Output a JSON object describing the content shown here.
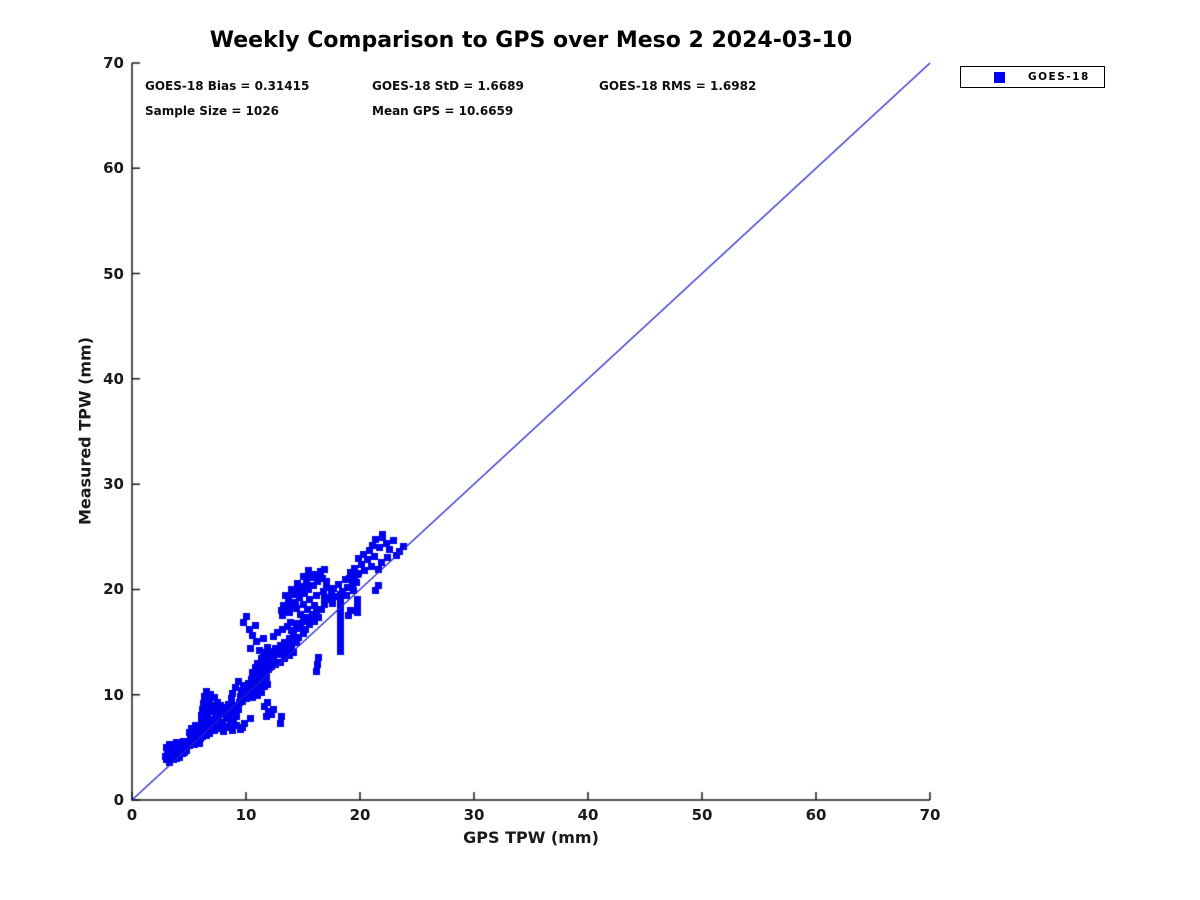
{
  "colors": {
    "marker": "#0000ee",
    "line": "#2222cc",
    "axis": "#1a1a1a",
    "text": "#000000"
  },
  "stats": {
    "bias": "GOES-18 Bias = 0.31415",
    "std": "GOES-18 StD = 1.6689",
    "rms": "GOES-18 RMS = 1.6982",
    "sample": "Sample Size = 1026",
    "mean_gps": "Mean GPS = 10.6659"
  },
  "legend": {
    "label": "GOES-18",
    "marker_color": "#0000ee"
  },
  "chart_data": {
    "type": "scatter",
    "title": "Weekly Comparison to GPS over Meso 2 2024-03-10",
    "xlabel": "GPS TPW (mm)",
    "ylabel": "Measured TPW (mm)",
    "xlim": [
      0,
      70
    ],
    "ylim": [
      0,
      70
    ],
    "xticks": [
      0,
      10,
      20,
      30,
      40,
      50,
      60,
      70
    ],
    "yticks": [
      0,
      10,
      20,
      30,
      40,
      50,
      60,
      70
    ],
    "grid": false,
    "legend_position": "top-right-outside",
    "annotations": [
      "GOES-18 Bias = 0.31415",
      "GOES-18 StD = 1.6689",
      "GOES-18 RMS = 1.6982",
      "Sample Size = 1026",
      "Mean GPS = 10.6659"
    ],
    "reported_sample_size": 1026,
    "series": [
      {
        "name": "GOES-18",
        "type": "scatter",
        "marker": "square",
        "marker_size": 7,
        "color": "#0000ee",
        "points": [
          [
            2.9,
            4.1
          ],
          [
            3.0,
            3.8
          ],
          [
            3.1,
            4.4
          ],
          [
            3.2,
            4.0
          ],
          [
            3.3,
            3.6
          ],
          [
            3.4,
            4.5
          ],
          [
            3.5,
            4.1
          ],
          [
            3.6,
            3.8
          ],
          [
            3.7,
            4.6
          ],
          [
            3.8,
            4.2
          ],
          [
            3.9,
            3.9
          ],
          [
            4.0,
            4.7
          ],
          [
            4.1,
            4.3
          ],
          [
            4.2,
            4.0
          ],
          [
            4.3,
            4.8
          ],
          [
            4.4,
            4.4
          ],
          [
            4.5,
            5.0
          ],
          [
            4.6,
            4.5
          ],
          [
            4.7,
            5.2
          ],
          [
            4.8,
            4.7
          ],
          [
            3.0,
            5.0
          ],
          [
            3.3,
            5.3
          ],
          [
            3.6,
            5.1
          ],
          [
            3.9,
            5.5
          ],
          [
            4.2,
            5.2
          ],
          [
            4.5,
            5.6
          ],
          [
            4.8,
            5.3
          ],
          [
            4.9,
            5.6
          ],
          [
            5.0,
            5.2
          ],
          [
            5.1,
            6.0
          ],
          [
            5.2,
            5.5
          ],
          [
            5.3,
            6.3
          ],
          [
            5.4,
            5.8
          ],
          [
            5.5,
            5.3
          ],
          [
            5.5,
            6.5
          ],
          [
            5.6,
            6.0
          ],
          [
            5.7,
            5.6
          ],
          [
            5.8,
            6.7
          ],
          [
            5.9,
            6.2
          ],
          [
            6.0,
            5.8
          ],
          [
            6.0,
            6.9
          ],
          [
            6.1,
            6.4
          ],
          [
            6.2,
            6.0
          ],
          [
            6.3,
            7.0
          ],
          [
            6.4,
            6.5
          ],
          [
            6.5,
            6.1
          ],
          [
            6.6,
            7.2
          ],
          [
            6.7,
            6.7
          ],
          [
            6.8,
            6.3
          ],
          [
            6.9,
            7.4
          ],
          [
            7.0,
            6.9
          ],
          [
            5.2,
            6.8
          ],
          [
            5.6,
            7.1
          ],
          [
            6.1,
            7.5
          ],
          [
            6.6,
            7.7
          ],
          [
            5.0,
            6.4
          ],
          [
            5.9,
            5.4
          ],
          [
            6.1,
            8.0
          ],
          [
            6.2,
            8.6
          ],
          [
            6.3,
            9.2
          ],
          [
            6.4,
            9.8
          ],
          [
            6.5,
            10.3
          ],
          [
            6.6,
            8.2
          ],
          [
            6.7,
            8.9
          ],
          [
            6.8,
            9.5
          ],
          [
            6.9,
            10.0
          ],
          [
            7.0,
            7.6
          ],
          [
            7.0,
            8.4
          ],
          [
            7.1,
            9.0
          ],
          [
            7.2,
            9.7
          ],
          [
            7.3,
            7.2
          ],
          [
            7.3,
            8.1
          ],
          [
            7.4,
            8.7
          ],
          [
            7.5,
            9.3
          ],
          [
            7.6,
            7.8
          ],
          [
            7.7,
            8.4
          ],
          [
            7.8,
            9.0
          ],
          [
            7.9,
            7.4
          ],
          [
            8.0,
            8.1
          ],
          [
            8.1,
            8.8
          ],
          [
            8.2,
            7.0
          ],
          [
            8.3,
            7.7
          ],
          [
            8.4,
            8.4
          ],
          [
            8.5,
            9.1
          ],
          [
            8.6,
            7.3
          ],
          [
            8.7,
            8.0
          ],
          [
            8.8,
            8.7
          ],
          [
            8.9,
            7.6
          ],
          [
            9.0,
            8.3
          ],
          [
            9.1,
            9.0
          ],
          [
            9.2,
            7.9
          ],
          [
            9.3,
            8.6
          ],
          [
            9.4,
            9.3
          ],
          [
            7.2,
            6.6
          ],
          [
            7.6,
            6.8
          ],
          [
            8.0,
            6.5
          ],
          [
            8.4,
            6.9
          ],
          [
            8.8,
            6.6
          ],
          [
            9.2,
            7.1
          ],
          [
            9.5,
            6.7
          ],
          [
            9.7,
            6.9
          ],
          [
            9.9,
            7.3
          ],
          [
            9.5,
            9.8
          ],
          [
            9.6,
            10.4
          ],
          [
            9.7,
            9.4
          ],
          [
            9.8,
            10.9
          ],
          [
            9.9,
            10.1
          ],
          [
            10.0,
            9.6
          ],
          [
            10.1,
            10.6
          ],
          [
            10.2,
            11.1
          ],
          [
            10.3,
            9.9
          ],
          [
            10.4,
            10.3
          ],
          [
            10.5,
            11.4
          ],
          [
            10.6,
            10.8
          ],
          [
            10.7,
            10.0
          ],
          [
            10.8,
            11.6
          ],
          [
            10.9,
            11.0
          ],
          [
            11.0,
            10.4
          ],
          [
            11.1,
            11.8
          ],
          [
            11.2,
            11.2
          ],
          [
            11.3,
            10.6
          ],
          [
            11.4,
            12.0
          ],
          [
            11.5,
            11.4
          ],
          [
            11.6,
            10.8
          ],
          [
            11.7,
            12.2
          ],
          [
            11.8,
            11.6
          ],
          [
            11.9,
            11.0
          ],
          [
            12.0,
            12.4
          ],
          [
            10.2,
            10.2
          ],
          [
            10.6,
            9.7
          ],
          [
            11.0,
            9.9
          ],
          [
            11.4,
            10.2
          ],
          [
            10.4,
            7.7
          ],
          [
            11.8,
            7.9
          ],
          [
            12.0,
            8.4
          ],
          [
            12.2,
            8.1
          ],
          [
            11.6,
            8.9
          ],
          [
            11.9,
            9.3
          ],
          [
            12.4,
            8.6
          ],
          [
            13.0,
            7.3
          ],
          [
            13.1,
            7.9
          ],
          [
            8.8,
            10.1
          ],
          [
            9.1,
            10.7
          ],
          [
            9.3,
            11.3
          ],
          [
            8.7,
            9.6
          ],
          [
            10.4,
            14.4
          ],
          [
            10.9,
            15.1
          ],
          [
            11.2,
            14.2
          ],
          [
            10.6,
            15.6
          ],
          [
            11.5,
            15.3
          ],
          [
            10.6,
            12.1
          ],
          [
            10.8,
            12.6
          ],
          [
            11.0,
            13.0
          ],
          [
            11.2,
            12.3
          ],
          [
            11.4,
            13.4
          ],
          [
            11.6,
            12.8
          ],
          [
            11.8,
            13.8
          ],
          [
            12.0,
            12.5
          ],
          [
            12.0,
            13.2
          ],
          [
            12.2,
            14.1
          ],
          [
            12.4,
            13.5
          ],
          [
            12.6,
            12.9
          ],
          [
            12.6,
            14.4
          ],
          [
            12.8,
            13.8
          ],
          [
            13.0,
            13.1
          ],
          [
            13.0,
            14.7
          ],
          [
            13.2,
            14.0
          ],
          [
            13.4,
            13.4
          ],
          [
            13.4,
            15.0
          ],
          [
            13.6,
            14.4
          ],
          [
            13.8,
            13.7
          ],
          [
            13.8,
            15.3
          ],
          [
            14.0,
            14.7
          ],
          [
            14.2,
            14.0
          ],
          [
            14.2,
            15.6
          ],
          [
            14.4,
            15.0
          ],
          [
            12.2,
            12.7
          ],
          [
            12.8,
            15.9
          ],
          [
            13.2,
            16.2
          ],
          [
            13.6,
            16.5
          ],
          [
            14.0,
            16.1
          ],
          [
            14.4,
            16.8
          ],
          [
            11.9,
            14.5
          ],
          [
            11.5,
            14.0
          ],
          [
            11.1,
            12.7
          ],
          [
            12.4,
            15.5
          ],
          [
            13.9,
            16.9
          ],
          [
            14.6,
            16.3
          ],
          [
            14.6,
            15.4
          ],
          [
            14.8,
            16.6
          ],
          [
            15.0,
            15.8
          ],
          [
            15.0,
            17.0
          ],
          [
            15.2,
            16.2
          ],
          [
            15.4,
            17.3
          ],
          [
            15.6,
            16.7
          ],
          [
            15.8,
            17.6
          ],
          [
            16.0,
            17.0
          ],
          [
            16.2,
            17.9
          ],
          [
            16.4,
            17.3
          ],
          [
            16.6,
            18.1
          ],
          [
            9.8,
            16.9
          ],
          [
            10.3,
            16.2
          ],
          [
            10.0,
            17.4
          ],
          [
            10.8,
            16.6
          ],
          [
            13.1,
            18.0
          ],
          [
            13.3,
            18.5
          ],
          [
            13.5,
            17.9
          ],
          [
            13.7,
            19.0
          ],
          [
            13.9,
            18.4
          ],
          [
            14.1,
            19.5
          ],
          [
            14.3,
            18.8
          ],
          [
            14.5,
            19.9
          ],
          [
            14.7,
            19.2
          ],
          [
            14.9,
            20.3
          ],
          [
            15.1,
            19.6
          ],
          [
            15.3,
            20.7
          ],
          [
            15.5,
            20.0
          ],
          [
            15.7,
            21.1
          ],
          [
            15.9,
            20.4
          ],
          [
            16.1,
            21.4
          ],
          [
            16.3,
            20.8
          ],
          [
            16.5,
            21.7
          ],
          [
            16.7,
            21.0
          ],
          [
            16.9,
            21.9
          ],
          [
            13.5,
            19.4
          ],
          [
            14.0,
            20.0
          ],
          [
            14.5,
            20.6
          ],
          [
            15.0,
            21.2
          ],
          [
            15.5,
            21.8
          ],
          [
            13.2,
            17.5
          ],
          [
            13.8,
            17.8
          ],
          [
            14.4,
            18.2
          ],
          [
            15.0,
            18.6
          ],
          [
            15.6,
            19.0
          ],
          [
            16.2,
            19.4
          ],
          [
            16.8,
            19.8
          ],
          [
            14.8,
            17.6
          ],
          [
            15.4,
            18.1
          ],
          [
            16.0,
            18.5
          ],
          [
            18.3,
            14.1
          ],
          [
            18.3,
            14.7
          ],
          [
            18.3,
            15.3
          ],
          [
            18.3,
            15.9
          ],
          [
            18.3,
            16.5
          ],
          [
            18.3,
            17.1
          ],
          [
            18.3,
            17.7
          ],
          [
            18.3,
            18.3
          ],
          [
            18.3,
            18.9
          ],
          [
            18.3,
            19.5
          ],
          [
            16.9,
            18.6
          ],
          [
            16.9,
            19.2
          ],
          [
            17.1,
            20.2
          ],
          [
            17.1,
            20.8
          ],
          [
            17.3,
            19.0
          ],
          [
            17.5,
            19.6
          ],
          [
            17.7,
            20.1
          ],
          [
            17.9,
            19.3
          ],
          [
            18.1,
            20.5
          ],
          [
            18.5,
            19.8
          ],
          [
            18.7,
            20.9
          ],
          [
            18.9,
            20.2
          ],
          [
            19.1,
            21.0
          ],
          [
            19.3,
            20.4
          ],
          [
            19.5,
            21.3
          ],
          [
            19.7,
            20.7
          ],
          [
            19.9,
            21.5
          ],
          [
            17.6,
            18.7
          ],
          [
            18.8,
            19.4
          ],
          [
            19.4,
            19.9
          ],
          [
            16.2,
            12.2
          ],
          [
            16.3,
            12.9
          ],
          [
            16.4,
            13.5
          ],
          [
            19.0,
            17.5
          ],
          [
            19.2,
            18.0
          ],
          [
            19.8,
            17.8
          ],
          [
            19.8,
            18.4
          ],
          [
            19.8,
            19.0
          ],
          [
            21.4,
            19.9
          ],
          [
            21.6,
            20.4
          ],
          [
            19.2,
            21.6
          ],
          [
            19.5,
            22.0
          ],
          [
            19.8,
            21.4
          ],
          [
            20.1,
            22.4
          ],
          [
            20.4,
            21.8
          ],
          [
            20.7,
            22.8
          ],
          [
            21.0,
            22.2
          ],
          [
            21.3,
            23.1
          ],
          [
            20.8,
            23.7
          ],
          [
            21.1,
            24.2
          ],
          [
            21.4,
            24.7
          ],
          [
            21.7,
            24.0
          ],
          [
            22.0,
            24.9
          ],
          [
            22.3,
            24.4
          ],
          [
            22.0,
            25.2
          ],
          [
            22.6,
            23.8
          ],
          [
            22.9,
            24.6
          ],
          [
            23.5,
            23.6
          ],
          [
            23.8,
            24.1
          ],
          [
            21.9,
            22.6
          ],
          [
            22.4,
            23.0
          ],
          [
            20.3,
            23.3
          ],
          [
            19.9,
            22.9
          ],
          [
            23.2,
            23.2
          ],
          [
            21.6,
            21.9
          ]
        ]
      },
      {
        "name": "1:1 line",
        "type": "line",
        "color": "#2222cc",
        "points": [
          [
            0,
            0
          ],
          [
            70,
            70
          ]
        ]
      }
    ]
  }
}
